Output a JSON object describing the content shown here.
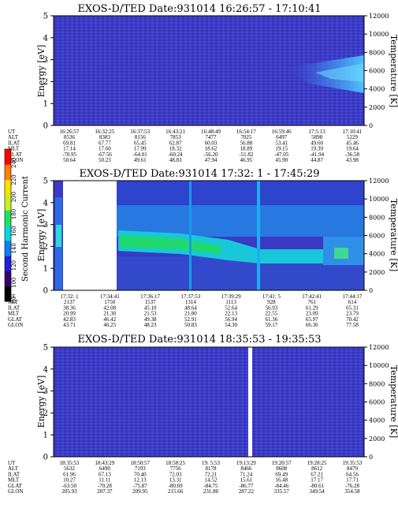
{
  "colorbar": {
    "label": "Second Harmonic Current",
    "ticks": [
      "80",
      "100",
      "120",
      "140",
      "160",
      "180",
      "200",
      "220",
      "240"
    ],
    "colors": [
      "#000000",
      "#3a0070",
      "#2020d8",
      "#1080f0",
      "#00d8e0",
      "#20e060",
      "#c8f020",
      "#ffe000",
      "#ff8000",
      "#ff0000"
    ]
  },
  "chart_data": [
    {
      "type": "heatmap",
      "title": "EXOS-D/TED   Date:931014   16:26:57 - 17:10:41",
      "ylabel": "Energy [eV]",
      "y2label": "Temperature [K]",
      "ylim": [
        0,
        5
      ],
      "y2lim": [
        0,
        12000
      ],
      "yticks": [
        "0",
        "1",
        "2",
        "3",
        "4",
        "5"
      ],
      "y2ticks": [
        "0",
        "2000",
        "4000",
        "6000",
        "8000",
        "10000",
        "12000"
      ],
      "table": {
        "rows": [
          "UT",
          "ALT",
          "ILAT",
          "MLT",
          "GLAT",
          "GLON"
        ],
        "columns": [
          [
            "16:26:57",
            "8536",
            "69.81",
            "17.14",
            "-70.95",
            "50.64"
          ],
          [
            "16:32:25",
            "8383",
            "67.77",
            "17.60",
            "-67.56",
            "50.23"
          ],
          [
            "16:37:53",
            "8156",
            "65.45",
            "17.99",
            "-64.01",
            "49.61"
          ],
          [
            "16:43:21",
            "7853",
            "62.87",
            "18.32",
            "-60.24",
            "48.83"
          ],
          [
            "16:48:49",
            "7477",
            "60.03",
            "18.62",
            "-56.20",
            "47.94"
          ],
          [
            "16:54:17",
            "7025",
            "56.88",
            "18.89",
            "-51.82",
            "46.95"
          ],
          [
            "16:59:46",
            "6497",
            "53.41",
            "19.15",
            "-47.05",
            "45.90"
          ],
          [
            "17:5:13",
            "5898",
            "49.60",
            "19.39",
            "-41.94",
            "44.87"
          ],
          [
            "17:10:41",
            "5229",
            "45.46",
            "19.64",
            "-36.58",
            "43.98"
          ]
        ]
      }
    },
    {
      "type": "heatmap",
      "title": "EXOS-D/TED   Date:931014   17:32: 1 - 17:45:29",
      "ylabel": "Energy [eV]",
      "y2label": "Temperature [K]",
      "ylim": [
        0,
        5
      ],
      "y2lim": [
        0,
        12000
      ],
      "yticks": [
        "0",
        "1",
        "2",
        "3",
        "4",
        "5"
      ],
      "y2ticks": [
        "0",
        "2000",
        "4000",
        "6000",
        "8000",
        "10000",
        "12000"
      ],
      "table": {
        "rows": [
          "UT",
          "ALT",
          "ILAT",
          "MLT",
          "GLAT",
          "GLON"
        ],
        "columns": [
          [
            "17:32: 1",
            "2137",
            "38.36",
            "20.99",
            "42.83",
            "43.71"
          ],
          [
            "17:34:41",
            "1750",
            "42.08",
            "21.30",
            "46.42",
            "46.25"
          ],
          [
            "17:36:17",
            "1537",
            "45.10",
            "21.53",
            "49.38",
            "48.23"
          ],
          [
            "17:37:53",
            "1314",
            "48.64",
            "21.80",
            "52.91",
            "50.83"
          ],
          [
            "17:39:29",
            "1113",
            "52.64",
            "22.13",
            "56.94",
            "54.30"
          ],
          [
            "17:41: 5",
            "928",
            "56.93",
            "22.55",
            "61.36",
            "59.17"
          ],
          [
            "17:42:41",
            "761",
            "61.29",
            "23.09",
            "65.97",
            "66.36"
          ],
          [
            "17:44:17",
            "614",
            "65.31",
            "23.79",
            "70.42",
            "77.58"
          ]
        ]
      }
    },
    {
      "type": "heatmap",
      "title": "EXOS-D/TED   Date:931014   18:35:53 - 19:35:53",
      "ylabel": "Energy [eV]",
      "y2label": "Temperature [K]",
      "ylim": [
        0,
        5
      ],
      "y2lim": [
        0,
        12000
      ],
      "yticks": [
        "0",
        "1",
        "2",
        "3",
        "4",
        "5"
      ],
      "y2ticks": [
        "0",
        "2000",
        "4000",
        "6000",
        "8000",
        "10000",
        "12000"
      ],
      "table": {
        "rows": [
          "UT",
          "ALT",
          "ILAT",
          "MLT",
          "GLAT",
          "GLON"
        ],
        "columns": [
          [
            "18:35:53",
            "5632",
            "61.96",
            "10.27",
            "-63.50",
            "205.93"
          ],
          [
            "18:43:29",
            "6490",
            "67.13",
            "11.11",
            "-70.28",
            "207.37"
          ],
          [
            "18:50:57",
            "7193",
            "70.40",
            "12.13",
            "-75.87",
            "209.95"
          ],
          [
            "18:58:25",
            "7756",
            "72.03",
            "13.31",
            "-80.69",
            "215.66"
          ],
          [
            "19: 5:53",
            "8178",
            "72.21",
            "14.52",
            "-84.75",
            "231.80"
          ],
          [
            "19:13:29",
            "8466",
            "71.24",
            "15.61",
            "-86.77",
            "287.22"
          ],
          [
            "19:20:57",
            "8608",
            "69.49",
            "16.48",
            "-84.46",
            "335.57"
          ],
          [
            "19:28:25",
            "8612",
            "67.21",
            "17.17",
            "-80.61",
            "349.54"
          ],
          [
            "19:35:53",
            "8479",
            "64.56",
            "17.71",
            "-76.28",
            "354.58"
          ]
        ]
      }
    }
  ]
}
